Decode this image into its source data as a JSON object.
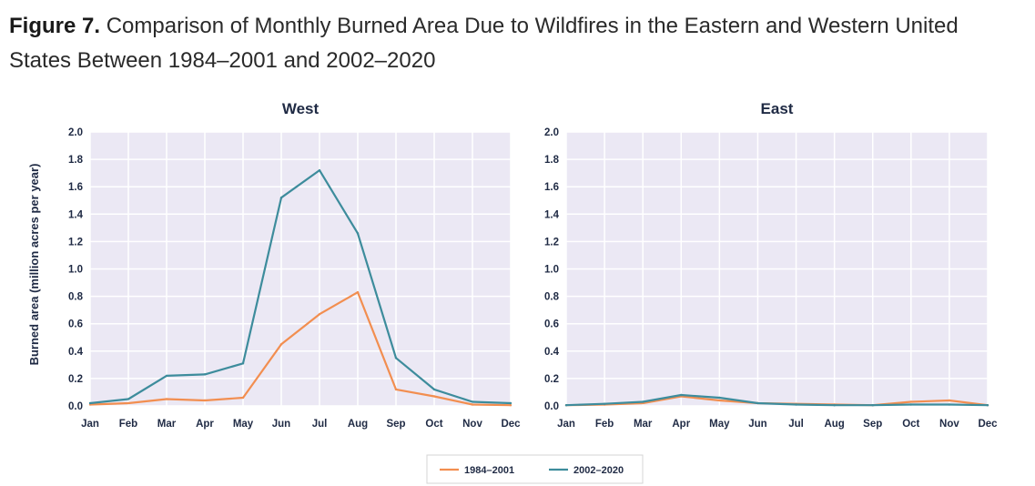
{
  "figure": {
    "label": "Figure 7.",
    "title": "Comparison of Monthly Burned Area Due to Wildfires in the Eastern and Western United States Between 1984–2001 and 2002–2020"
  },
  "colors": {
    "series_1984": "#f28e50",
    "series_2002": "#3d8c9c",
    "plot_bg": "#ebe8f4",
    "grid": "#ffffff",
    "axis_text": "#1f2a44"
  },
  "chart_data": [
    {
      "type": "line",
      "title": "West",
      "xlabel": "",
      "ylabel": "Burned area (million acres per year)",
      "categories": [
        "Jan",
        "Feb",
        "Mar",
        "Apr",
        "May",
        "Jun",
        "Jul",
        "Aug",
        "Sep",
        "Oct",
        "Nov",
        "Dec"
      ],
      "ylim": [
        0,
        2.0
      ],
      "yticks": [
        "0.0",
        "0.2",
        "0.4",
        "0.6",
        "0.8",
        "1.0",
        "1.2",
        "1.4",
        "1.6",
        "1.8",
        "2.0"
      ],
      "series": [
        {
          "name": "1984–2001",
          "values": [
            0.01,
            0.02,
            0.05,
            0.04,
            0.06,
            0.45,
            0.67,
            0.83,
            0.12,
            0.07,
            0.01,
            0.005
          ]
        },
        {
          "name": "2002–2020",
          "values": [
            0.02,
            0.05,
            0.22,
            0.23,
            0.31,
            1.52,
            1.72,
            1.26,
            0.35,
            0.12,
            0.03,
            0.02
          ]
        }
      ]
    },
    {
      "type": "line",
      "title": "East",
      "xlabel": "",
      "ylabel": "",
      "categories": [
        "Jan",
        "Feb",
        "Mar",
        "Apr",
        "May",
        "Jun",
        "Jul",
        "Aug",
        "Sep",
        "Oct",
        "Nov",
        "Dec"
      ],
      "ylim": [
        0,
        2.0
      ],
      "yticks": [
        "0.0",
        "0.2",
        "0.4",
        "0.6",
        "0.8",
        "1.0",
        "1.2",
        "1.4",
        "1.6",
        "1.8",
        "2.0"
      ],
      "series": [
        {
          "name": "1984–2001",
          "values": [
            0.005,
            0.01,
            0.02,
            0.07,
            0.04,
            0.02,
            0.015,
            0.01,
            0.005,
            0.03,
            0.04,
            0.005
          ]
        },
        {
          "name": "2002–2020",
          "values": [
            0.005,
            0.015,
            0.03,
            0.08,
            0.06,
            0.02,
            0.01,
            0.005,
            0.005,
            0.01,
            0.01,
            0.005
          ]
        }
      ]
    }
  ],
  "legend": {
    "items": [
      "1984–2001",
      "2002–2020"
    ]
  }
}
